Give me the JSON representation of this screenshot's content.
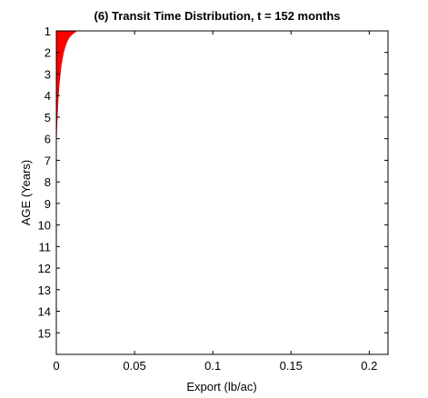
{
  "chart_data": {
    "type": "area",
    "title": "(6) Transit Time Distribution, t = 152 months",
    "xlabel": "Export (lb/ac)",
    "ylabel": "AGE (Years)",
    "xlim": [
      0,
      0.212
    ],
    "ylim": [
      1,
      16
    ],
    "y_reversed": true,
    "xticks": [
      0,
      0.05,
      0.1,
      0.15,
      0.2
    ],
    "xtick_labels": [
      "0",
      "0.05",
      "0.1",
      "0.15",
      "0.2"
    ],
    "yticks": [
      1,
      2,
      3,
      4,
      5,
      6,
      7,
      8,
      9,
      10,
      11,
      12,
      13,
      14,
      15
    ],
    "ytick_labels": [
      "1",
      "2",
      "3",
      "4",
      "5",
      "6",
      "7",
      "8",
      "9",
      "10",
      "11",
      "12",
      "13",
      "14",
      "15"
    ],
    "fill_color": "#ff0000",
    "grid": false,
    "series": [
      {
        "age": [
          1.0,
          1.1,
          1.2,
          1.3,
          1.5,
          1.75,
          2.0,
          2.3,
          2.6,
          3.0,
          3.5,
          4.0,
          4.5,
          5.0,
          5.5,
          6.0,
          6.2,
          6.3
        ],
        "export": [
          0.0135,
          0.0115,
          0.0098,
          0.0085,
          0.007,
          0.0058,
          0.0048,
          0.004,
          0.0033,
          0.0027,
          0.002,
          0.0015,
          0.0011,
          0.0008,
          0.0005,
          0.0003,
          0.0001,
          0.0
        ]
      }
    ]
  }
}
